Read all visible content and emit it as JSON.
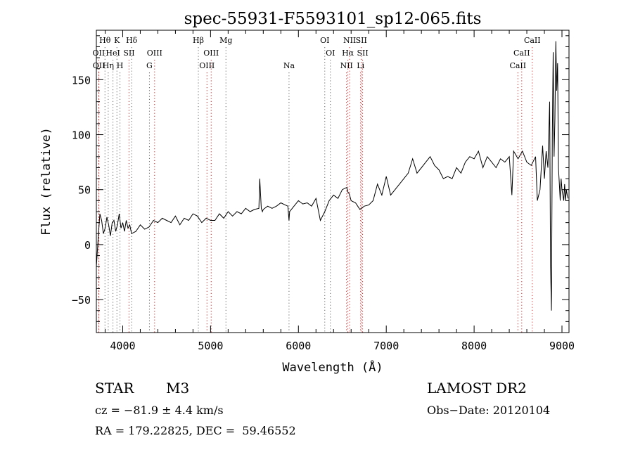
{
  "chart_data": {
    "type": "line",
    "title": "spec-55931-F5593101_sp12-065.fits",
    "xlabel": "Wavelength (Å)",
    "ylabel": "Flux (relative)",
    "xlim": [
      3700,
      9080
    ],
    "ylim": [
      -80,
      195
    ],
    "xticks": [
      4000,
      5000,
      6000,
      7000,
      8000,
      9000
    ],
    "yticks": [
      -50,
      0,
      50,
      100,
      150
    ],
    "grid": false,
    "series": [
      {
        "color": "#000000",
        "x": [
          3700,
          3720,
          3740,
          3760,
          3780,
          3800,
          3820,
          3840,
          3860,
          3880,
          3900,
          3920,
          3940,
          3960,
          3980,
          4000,
          4020,
          4040,
          4060,
          4080,
          4100,
          4150,
          4200,
          4250,
          4300,
          4350,
          4400,
          4450,
          4500,
          4550,
          4600,
          4650,
          4700,
          4750,
          4800,
          4850,
          4900,
          4950,
          5000,
          5050,
          5100,
          5150,
          5200,
          5250,
          5300,
          5350,
          5400,
          5450,
          5500,
          5550,
          5560,
          5577,
          5590,
          5600,
          5650,
          5700,
          5750,
          5800,
          5850,
          5880,
          5893,
          5900,
          5950,
          6000,
          6050,
          6100,
          6150,
          6200,
          6230,
          6250,
          6300,
          6350,
          6400,
          6450,
          6500,
          6550,
          6563,
          6580,
          6600,
          6650,
          6700,
          6750,
          6800,
          6850,
          6900,
          6950,
          7000,
          7050,
          7100,
          7150,
          7200,
          7250,
          7300,
          7350,
          7400,
          7450,
          7500,
          7550,
          7600,
          7650,
          7700,
          7750,
          7800,
          7850,
          7900,
          7950,
          8000,
          8050,
          8100,
          8150,
          8200,
          8250,
          8300,
          8350,
          8400,
          8430,
          8450,
          8500,
          8550,
          8600,
          8650,
          8700,
          8720,
          8750,
          8780,
          8800,
          8820,
          8840,
          8860,
          8870,
          8880,
          8890,
          8900,
          8910,
          8920,
          8930,
          8940,
          8950,
          8960,
          8970,
          8980,
          8990,
          9000,
          9010,
          9020,
          9030,
          9040,
          9050,
          9060,
          9070
        ],
        "y": [
          -20,
          5,
          28,
          22,
          10,
          15,
          25,
          18,
          8,
          20,
          22,
          12,
          18,
          28,
          15,
          20,
          12,
          22,
          15,
          18,
          10,
          12,
          18,
          14,
          16,
          22,
          20,
          24,
          22,
          20,
          26,
          18,
          24,
          22,
          28,
          26,
          20,
          24,
          22,
          22,
          28,
          24,
          30,
          26,
          30,
          28,
          33,
          30,
          32,
          33,
          60,
          33,
          30,
          32,
          35,
          33,
          35,
          38,
          36,
          35,
          22,
          30,
          35,
          40,
          37,
          38,
          35,
          42,
          30,
          22,
          30,
          40,
          45,
          42,
          50,
          52,
          48,
          46,
          40,
          38,
          32,
          35,
          36,
          40,
          55,
          45,
          62,
          45,
          50,
          55,
          60,
          65,
          78,
          65,
          70,
          75,
          80,
          72,
          68,
          60,
          62,
          60,
          70,
          65,
          75,
          80,
          78,
          85,
          70,
          80,
          75,
          70,
          78,
          75,
          80,
          45,
          85,
          78,
          85,
          75,
          72,
          80,
          40,
          50,
          90,
          60,
          85,
          70,
          130,
          -20,
          -60,
          100,
          175,
          80,
          115,
          185,
          140,
          165,
          70,
          55,
          40,
          60,
          50,
          45,
          40,
          55,
          40,
          50,
          45,
          42
        ]
      }
    ],
    "lines": [
      {
        "label": "Hθ",
        "row": 0,
        "x": 3798,
        "color": "#666666"
      },
      {
        "label": "K",
        "row": 0,
        "x": 3934,
        "color": "#666666"
      },
      {
        "label": "Hδ",
        "row": 0,
        "x": 4102,
        "color": "#666666"
      },
      {
        "label": "Hβ",
        "row": 0,
        "x": 4861,
        "color": "#666666"
      },
      {
        "label": "Mg",
        "row": 0,
        "x": 5175,
        "color": "#666666"
      },
      {
        "label": "OI",
        "row": 0,
        "x": 6300,
        "color": "#666666"
      },
      {
        "label": "NII",
        "row": 0,
        "x": 6583,
        "color": "#cc2222"
      },
      {
        "label": "SII",
        "row": 0,
        "x": 6716,
        "color": "#cc2222"
      },
      {
        "label": "CaII",
        "row": 0,
        "x": 8662,
        "color": "#cc2222"
      },
      {
        "label": "OII",
        "row": 1,
        "x": 3727,
        "color": "#cc2222"
      },
      {
        "label": "HeI",
        "row": 1,
        "x": 3889,
        "color": "#666666"
      },
      {
        "label": "SII",
        "row": 1,
        "x": 4072,
        "color": "#cc2222"
      },
      {
        "label": "OIII",
        "row": 1,
        "x": 4363,
        "color": "#cc2222"
      },
      {
        "label": "OIII",
        "row": 1,
        "x": 5007,
        "color": "#cc2222"
      },
      {
        "label": "OI",
        "row": 1,
        "x": 6364,
        "color": "#666666"
      },
      {
        "label": "Hα",
        "row": 1,
        "x": 6563,
        "color": "#cc2222"
      },
      {
        "label": "SII",
        "row": 1,
        "x": 6731,
        "color": "#cc2222"
      },
      {
        "label": "CaII",
        "row": 1,
        "x": 8542,
        "color": "#cc2222"
      },
      {
        "label": "OII",
        "row": 2,
        "x": 3729,
        "color": "#cc2222"
      },
      {
        "label": "Hη",
        "row": 2,
        "x": 3835,
        "color": "#666666"
      },
      {
        "label": "H",
        "row": 2,
        "x": 3969,
        "color": "#666666"
      },
      {
        "label": "G",
        "row": 2,
        "x": 4304,
        "color": "#666666"
      },
      {
        "label": "OIII",
        "row": 2,
        "x": 4959,
        "color": "#cc2222"
      },
      {
        "label": "Na",
        "row": 2,
        "x": 5893,
        "color": "#666666"
      },
      {
        "label": "NII",
        "row": 2,
        "x": 6548,
        "color": "#cc2222"
      },
      {
        "label": "Li",
        "row": 2,
        "x": 6708,
        "color": "#cc2222"
      },
      {
        "label": "CaII",
        "row": 2,
        "x": 8498,
        "color": "#cc2222"
      }
    ]
  },
  "info": {
    "object_class": "STAR",
    "subclass": "M3",
    "survey": "LAMOST DR2",
    "cz": "cz = −81.9 ± 4.4 km/s",
    "obs_date": "Obs−Date: 20120104",
    "coords": "RA = 179.22825, DEC =  59.46552"
  }
}
